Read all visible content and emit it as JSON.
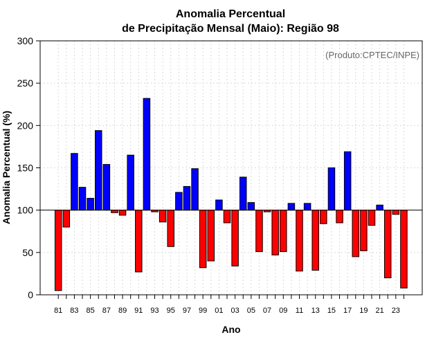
{
  "chart_data": {
    "type": "bar",
    "title_line1": "Anomalia Percentual",
    "title_line2": "de Precipitação Mensal (Maio): Região 98",
    "credit": "(Produto:CPTEC/INPE)",
    "xlabel": "Ano",
    "ylabel": "Anomalia Percentual (%)",
    "ylim": [
      0,
      300
    ],
    "yticks": [
      0,
      50,
      100,
      150,
      200,
      250,
      300
    ],
    "baseline": 100,
    "grid": true,
    "colors": {
      "above": "#0000ff",
      "below": "#ff0000",
      "grid": "#d9d9d9"
    },
    "categories": [
      "81",
      "82",
      "83",
      "84",
      "85",
      "86",
      "87",
      "88",
      "89",
      "90",
      "91",
      "92",
      "93",
      "94",
      "95",
      "96",
      "97",
      "98",
      "99",
      "00",
      "01",
      "02",
      "03",
      "04",
      "05",
      "06",
      "07",
      "08",
      "09",
      "10",
      "11",
      "12",
      "13",
      "14",
      "15",
      "16",
      "17",
      "18",
      "19",
      "20",
      "21",
      "22",
      "23",
      "24"
    ],
    "tick_labels": [
      "81",
      "",
      "83",
      "",
      "85",
      "",
      "87",
      "",
      "89",
      "",
      "91",
      "",
      "93",
      "",
      "95",
      "",
      "97",
      "",
      "99",
      "",
      "01",
      "",
      "03",
      "",
      "05",
      "",
      "07",
      "",
      "09",
      "",
      "11",
      "",
      "13",
      "",
      "15",
      "",
      "17",
      "",
      "19",
      "",
      "21",
      "",
      "23",
      ""
    ],
    "values": [
      5,
      80,
      167,
      127,
      114,
      194,
      154,
      97,
      94,
      165,
      27,
      232,
      98,
      86,
      57,
      121,
      128,
      149,
      32,
      40,
      112,
      85,
      34,
      139,
      109,
      51,
      98,
      47,
      51,
      108,
      28,
      108,
      29,
      84,
      150,
      85,
      169,
      45,
      52,
      82,
      106,
      20,
      95,
      8
    ]
  }
}
